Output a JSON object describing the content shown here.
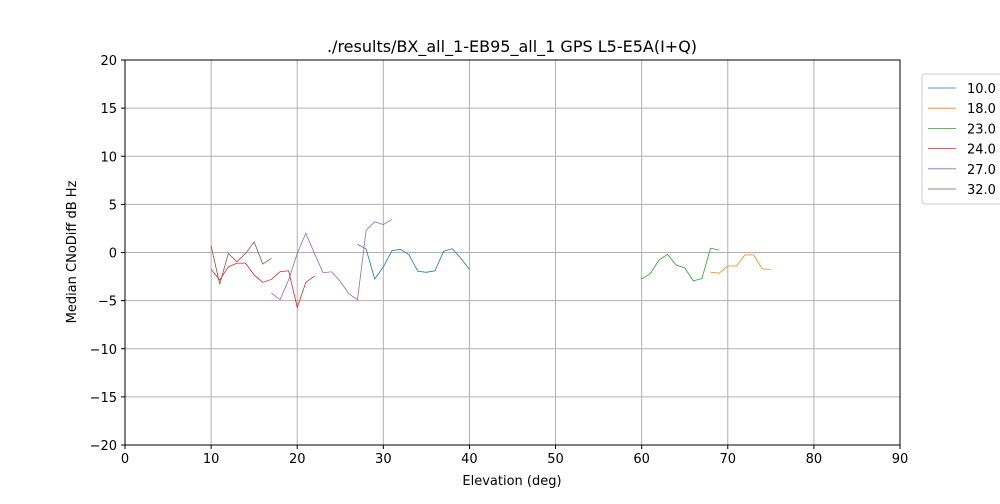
{
  "chart_data": {
    "type": "line",
    "title": "./results/BX_all_1-EB95_all_1 GPS L5-E5A(I+Q)",
    "xlabel": "Elevation (deg)",
    "ylabel": "Median CNoDiff dB Hz",
    "xlim": [
      0,
      90
    ],
    "ylim": [
      -20,
      20
    ],
    "xticks": [
      0,
      10,
      20,
      30,
      40,
      50,
      60,
      70,
      80,
      90
    ],
    "yticks": [
      -20,
      -15,
      -10,
      -5,
      0,
      5,
      10,
      15,
      20
    ],
    "ytick_labels": [
      "−20",
      "−15",
      "−10",
      "−5",
      "0",
      "5",
      "10",
      "15",
      "20"
    ],
    "grid": true,
    "legend_placement": "outside-top-right",
    "series": [
      {
        "name": "10.0",
        "color": "#1f77b4",
        "x": [
          27,
          28,
          29,
          30,
          31,
          32,
          33,
          34,
          35,
          36,
          37,
          38,
          39,
          40
        ],
        "y": [
          0.85,
          0.36,
          -2.75,
          -1.5,
          0.2,
          0.33,
          -0.26,
          -1.95,
          -2.06,
          -1.9,
          0.12,
          0.4,
          -0.6,
          -1.75
        ]
      },
      {
        "name": "18.0",
        "color": "#ff7f0e",
        "x": [
          68,
          69,
          70,
          71,
          72,
          73,
          74,
          75
        ],
        "y": [
          -2.05,
          -2.15,
          -1.4,
          -1.4,
          -0.25,
          -0.25,
          -1.7,
          -1.75
        ]
      },
      {
        "name": "23.0",
        "color": "#2ca02c",
        "x": [
          60,
          61,
          62,
          63,
          64,
          65,
          66,
          67,
          68,
          69
        ],
        "y": [
          -2.75,
          -2.2,
          -0.8,
          -0.2,
          -1.3,
          -1.6,
          -2.95,
          -2.7,
          0.45,
          0.25
        ]
      },
      {
        "name": "24.0",
        "color": "#d62728",
        "x": [
          10,
          11,
          12,
          13,
          14,
          15,
          16,
          17,
          18,
          19,
          20,
          21,
          22
        ],
        "y": [
          -1.75,
          -2.85,
          -1.5,
          -1.1,
          -1.1,
          -2.35,
          -3.1,
          -2.8,
          -2.0,
          -1.9,
          -5.7,
          -3.1,
          -2.45
        ]
      },
      {
        "name": "27.0",
        "color": "#9467bd",
        "x": [
          17,
          18,
          19,
          20,
          21,
          22,
          23,
          24,
          25,
          26,
          27,
          28,
          29,
          30,
          31
        ],
        "y": [
          -4.2,
          -4.9,
          -2.85,
          -0.1,
          2.0,
          -0.1,
          -2.1,
          -2.0,
          -3.0,
          -4.3,
          -4.9,
          2.3,
          3.2,
          2.9,
          3.45
        ]
      },
      {
        "name": "32.0",
        "color": "#8c564b",
        "x": [
          10,
          11,
          12,
          13,
          14,
          15,
          16,
          17
        ],
        "y": [
          0.7,
          -3.3,
          -0.1,
          -0.95,
          -0.1,
          1.1,
          -1.2,
          -0.6
        ]
      }
    ]
  }
}
